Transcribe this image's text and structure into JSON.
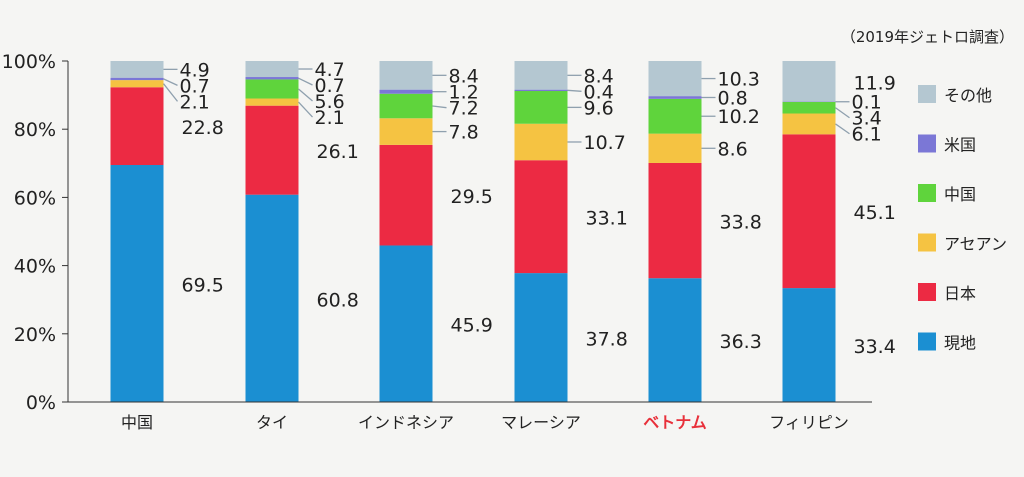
{
  "chart_data": {
    "type": "bar",
    "stacked": true,
    "title": "",
    "note": "（2019年ジェトロ調査）",
    "xlabel": "",
    "ylabel": "",
    "ylim": [
      0,
      100
    ],
    "yticks": [
      "0%",
      "20%",
      "40%",
      "60%",
      "80%",
      "100%"
    ],
    "categories": [
      "中国",
      "タイ",
      "インドネシア",
      "マレーシア",
      "ベトナム",
      "フィリピン"
    ],
    "highlight_category": "ベトナム",
    "highlight_color": "#e8303a",
    "grid": false,
    "legend_position": "right",
    "series": [
      {
        "name": "現地",
        "color": "#1b8fd2",
        "values": [
          69.5,
          60.8,
          45.9,
          37.8,
          36.3,
          33.4
        ]
      },
      {
        "name": "日本",
        "color": "#ec2a43",
        "values": [
          22.8,
          26.1,
          29.5,
          33.1,
          33.8,
          45.1
        ]
      },
      {
        "name": "アセアン",
        "color": "#f5c342",
        "values": [
          2.1,
          2.1,
          7.8,
          10.7,
          8.6,
          6.1
        ]
      },
      {
        "name": "中国",
        "color": "#5fd43c",
        "values": [
          0.0,
          5.6,
          7.2,
          9.6,
          10.2,
          3.4
        ]
      },
      {
        "name": "米国",
        "color": "#7b77d6",
        "values": [
          0.7,
          0.7,
          1.2,
          0.4,
          0.8,
          0.1
        ]
      },
      {
        "name": "その他",
        "color": "#b4c7d1",
        "values": [
          4.9,
          4.7,
          8.4,
          8.4,
          10.3,
          11.9
        ]
      }
    ],
    "bar_labels": [
      [
        "69.5",
        "22.8",
        "2.1",
        "0.7",
        "4.9"
      ],
      [
        "60.8",
        "26.1",
        "2.1",
        "5.6",
        "0.7",
        "4.7"
      ],
      [
        "45.9",
        "29.5",
        "7.8",
        "7.2",
        "1.2",
        "8.4"
      ],
      [
        "37.8",
        "33.1",
        "10.7",
        "9.6",
        "0.4",
        "8.4"
      ],
      [
        "36.3",
        "33.8",
        "8.6",
        "10.2",
        "0.8",
        "10.3"
      ],
      [
        "33.4",
        "45.1",
        "6.1",
        "3.4",
        "0.1",
        "11.9"
      ]
    ]
  }
}
